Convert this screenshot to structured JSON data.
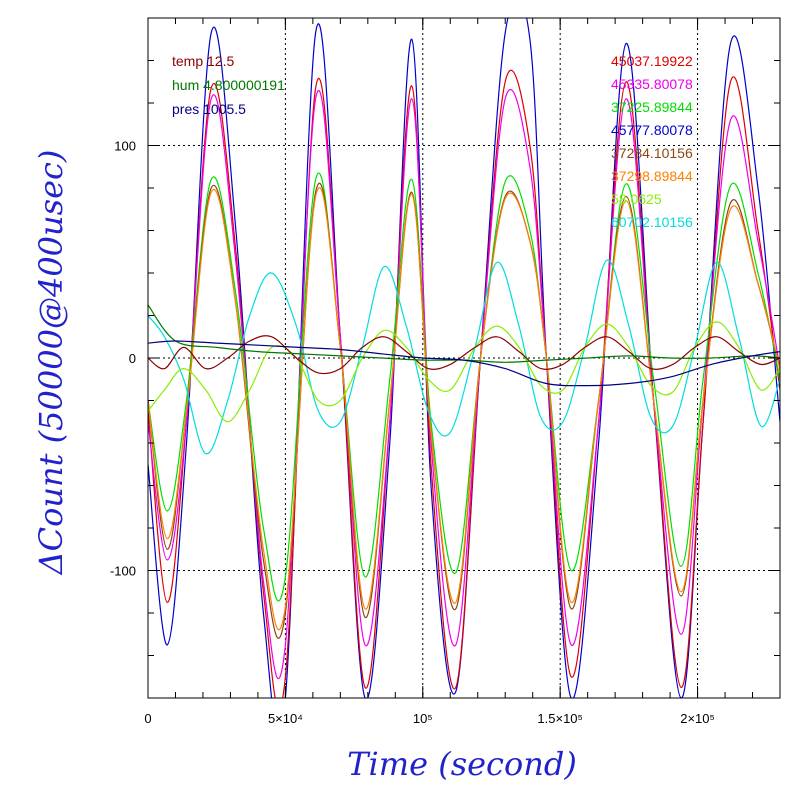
{
  "chart_data": {
    "type": "line",
    "xlabel": "Time (second)",
    "ylabel": "ΔCount (50000@400usec)",
    "xlim": [
      0,
      230000
    ],
    "ylim": [
      -160,
      160
    ],
    "grid": true,
    "label_color": "#2222cc",
    "x_ticks": [
      {
        "value": 0,
        "label": "0"
      },
      {
        "value": 50000,
        "label": "5×10⁴"
      },
      {
        "value": 100000,
        "label": "10⁵"
      },
      {
        "value": 150000,
        "label": "1.5×10⁵"
      },
      {
        "value": 200000,
        "label": "2×10⁵"
      }
    ],
    "y_ticks": [
      {
        "value": -100,
        "label": "-100"
      },
      {
        "value": 0,
        "label": "0"
      },
      {
        "value": 100,
        "label": "100"
      }
    ],
    "legend_left": [
      {
        "label": "temp 12.5",
        "color": "#8b0000"
      },
      {
        "label": "hum 4.800000191",
        "color": "#007700"
      },
      {
        "label": "pres 1005.5",
        "color": "#000080"
      }
    ],
    "legend_right": [
      {
        "label": "45037.19922",
        "color": "#dd0000"
      },
      {
        "label": "45335.80078",
        "color": "#ee00ee"
      },
      {
        "label": "37225.89844",
        "color": "#00dd00"
      },
      {
        "label": "45777.80078",
        "color": "#0000cc"
      },
      {
        "label": "37284.10156",
        "color": "#8b4513"
      },
      {
        "label": "37298.89844",
        "color": "#ff8000"
      },
      {
        "label": "58.0625",
        "color": "#88ee00"
      },
      {
        "label": "60702.10156",
        "color": "#00dddd"
      }
    ],
    "series": [
      {
        "color": "#0000cc",
        "x": [
          0,
          7000,
          14000,
          23000,
          32000,
          42000,
          50000,
          61000,
          70000,
          79000,
          88000,
          96000,
          103000,
          112000,
          121000,
          130000,
          139000,
          145000,
          154000,
          164000,
          174000,
          184000,
          194000,
          202000,
          212000,
          222000,
          230000
        ],
        "y": [
          -50,
          -135,
          -40,
          153,
          60,
          -120,
          -160,
          153,
          10,
          -160,
          -40,
          150,
          -60,
          -157,
          0,
          153,
          150,
          0,
          -160,
          -40,
          148,
          -20,
          -160,
          -30,
          148,
          80,
          -30
        ]
      },
      {
        "color": "#dd0000",
        "x": [
          0,
          7000,
          14000,
          23000,
          32000,
          42000,
          50000,
          61000,
          70000,
          79000,
          88000,
          96000,
          103000,
          112000,
          121000,
          130000,
          139000,
          145000,
          154000,
          164000,
          174000,
          184000,
          194000,
          202000,
          212000,
          222000,
          230000
        ],
        "y": [
          -25,
          -115,
          -30,
          127,
          50,
          -110,
          -150,
          127,
          10,
          -155,
          -30,
          128,
          -50,
          -155,
          0,
          130,
          100,
          0,
          -150,
          -30,
          130,
          -20,
          -155,
          -30,
          130,
          60,
          -15
        ]
      },
      {
        "color": "#ee00ee",
        "x": [
          0,
          7000,
          14000,
          23000,
          32000,
          42000,
          50000,
          61000,
          70000,
          79000,
          88000,
          96000,
          103000,
          112000,
          121000,
          130000,
          139000,
          145000,
          154000,
          164000,
          174000,
          184000,
          194000,
          202000,
          212000,
          222000,
          230000
        ],
        "y": [
          -30,
          -95,
          -30,
          122,
          45,
          -105,
          -135,
          122,
          10,
          -135,
          -30,
          122,
          -40,
          -135,
          0,
          122,
          90,
          0,
          -135,
          -30,
          122,
          -20,
          -130,
          -20,
          112,
          55,
          -5
        ]
      },
      {
        "color": "#00dd00",
        "x": [
          0,
          7000,
          14000,
          23000,
          32000,
          42000,
          50000,
          61000,
          70000,
          79000,
          88000,
          96000,
          103000,
          112000,
          121000,
          130000,
          139000,
          145000,
          154000,
          164000,
          174000,
          184000,
          194000,
          202000,
          212000,
          222000,
          230000
        ],
        "y": [
          -20,
          -72,
          -20,
          84,
          30,
          -80,
          -103,
          84,
          5,
          -103,
          -10,
          84,
          -30,
          -101,
          0,
          83,
          60,
          0,
          -100,
          -20,
          82,
          -10,
          -98,
          -10,
          81,
          40,
          -10
        ]
      },
      {
        "color": "#8b4513",
        "x": [
          0,
          7000,
          14000,
          23000,
          32000,
          42000,
          50000,
          61000,
          70000,
          79000,
          88000,
          96000,
          103000,
          112000,
          121000,
          130000,
          139000,
          145000,
          154000,
          164000,
          174000,
          184000,
          194000,
          202000,
          212000,
          222000,
          230000
        ],
        "y": [
          -20,
          -90,
          -25,
          80,
          25,
          -95,
          -120,
          78,
          5,
          -122,
          -20,
          78,
          -35,
          -118,
          0,
          76,
          55,
          0,
          -118,
          -20,
          76,
          -20,
          -112,
          -20,
          73,
          35,
          -5
        ]
      },
      {
        "color": "#ff8000",
        "x": [
          0,
          7000,
          14000,
          23000,
          32000,
          42000,
          50000,
          61000,
          70000,
          79000,
          88000,
          96000,
          103000,
          112000,
          121000,
          130000,
          139000,
          145000,
          154000,
          164000,
          174000,
          184000,
          194000,
          202000,
          212000,
          222000,
          230000
        ],
        "y": [
          -20,
          -85,
          -25,
          78,
          25,
          -90,
          -117,
          76,
          5,
          -118,
          -20,
          77,
          -35,
          -115,
          0,
          75,
          55,
          0,
          -115,
          -20,
          74,
          -20,
          -110,
          -20,
          70,
          35,
          -5
        ]
      },
      {
        "color": "#00dddd",
        "x": [
          0,
          6000,
          13000,
          21000,
          29000,
          37000,
          45000,
          54000,
          62000,
          70000,
          78000,
          86000,
          94000,
          102000,
          110000,
          119000,
          127000,
          135000,
          143000,
          151000,
          159000,
          167000,
          175000,
          183000,
          191000,
          199000,
          207000,
          215000,
          223000,
          230000
        ],
        "y": [
          20,
          10,
          -10,
          -45,
          -20,
          20,
          40,
          15,
          -25,
          -30,
          5,
          43,
          15,
          -25,
          -35,
          5,
          45,
          15,
          -28,
          -30,
          5,
          46,
          15,
          -28,
          -32,
          5,
          45,
          10,
          -32,
          -10
        ]
      },
      {
        "color": "#88ee00",
        "x": [
          0,
          6000,
          13000,
          21000,
          29000,
          37000,
          45000,
          54000,
          62000,
          70000,
          78000,
          86000,
          94000,
          102000,
          110000,
          119000,
          127000,
          135000,
          143000,
          151000,
          159000,
          167000,
          175000,
          183000,
          191000,
          199000,
          207000,
          215000,
          223000,
          230000
        ],
        "y": [
          -25,
          -15,
          -5,
          -15,
          -30,
          -15,
          5,
          0,
          -20,
          -20,
          0,
          13,
          5,
          -10,
          -15,
          5,
          15,
          5,
          -13,
          -15,
          5,
          16,
          5,
          -13,
          -16,
          5,
          17,
          5,
          -15,
          -5
        ]
      },
      {
        "color": "#8b0000",
        "x": [
          0,
          6000,
          13000,
          21000,
          29000,
          37000,
          45000,
          54000,
          62000,
          70000,
          78000,
          86000,
          94000,
          102000,
          110000,
          119000,
          127000,
          135000,
          143000,
          151000,
          159000,
          167000,
          175000,
          183000,
          191000,
          199000,
          207000,
          215000,
          223000,
          230000
        ],
        "y": [
          0,
          -5,
          5,
          -5,
          0,
          8,
          10,
          0,
          -7,
          -5,
          5,
          10,
          3,
          -5,
          -3,
          5,
          10,
          3,
          -5,
          -3,
          5,
          10,
          3,
          -5,
          -3,
          5,
          10,
          3,
          -3,
          0
        ]
      },
      {
        "color": "#007700",
        "x": [
          0,
          10000,
          25000,
          40000,
          55000,
          70000,
          85000,
          100000,
          115000,
          130000,
          145000,
          160000,
          175000,
          190000,
          205000,
          220000,
          230000
        ],
        "y": [
          25,
          8,
          5,
          3,
          2,
          1,
          0,
          -1,
          -1,
          -2,
          -1,
          0,
          1,
          0,
          0,
          1,
          0
        ]
      },
      {
        "color": "#000080",
        "x": [
          0,
          10000,
          25000,
          40000,
          55000,
          70000,
          85000,
          100000,
          115000,
          130000,
          145000,
          160000,
          175000,
          190000,
          205000,
          220000,
          230000
        ],
        "y": [
          7,
          8,
          7,
          6,
          5,
          4,
          2,
          0,
          -1,
          -5,
          -12,
          -13,
          -12,
          -9,
          -3,
          1,
          3
        ]
      }
    ]
  }
}
